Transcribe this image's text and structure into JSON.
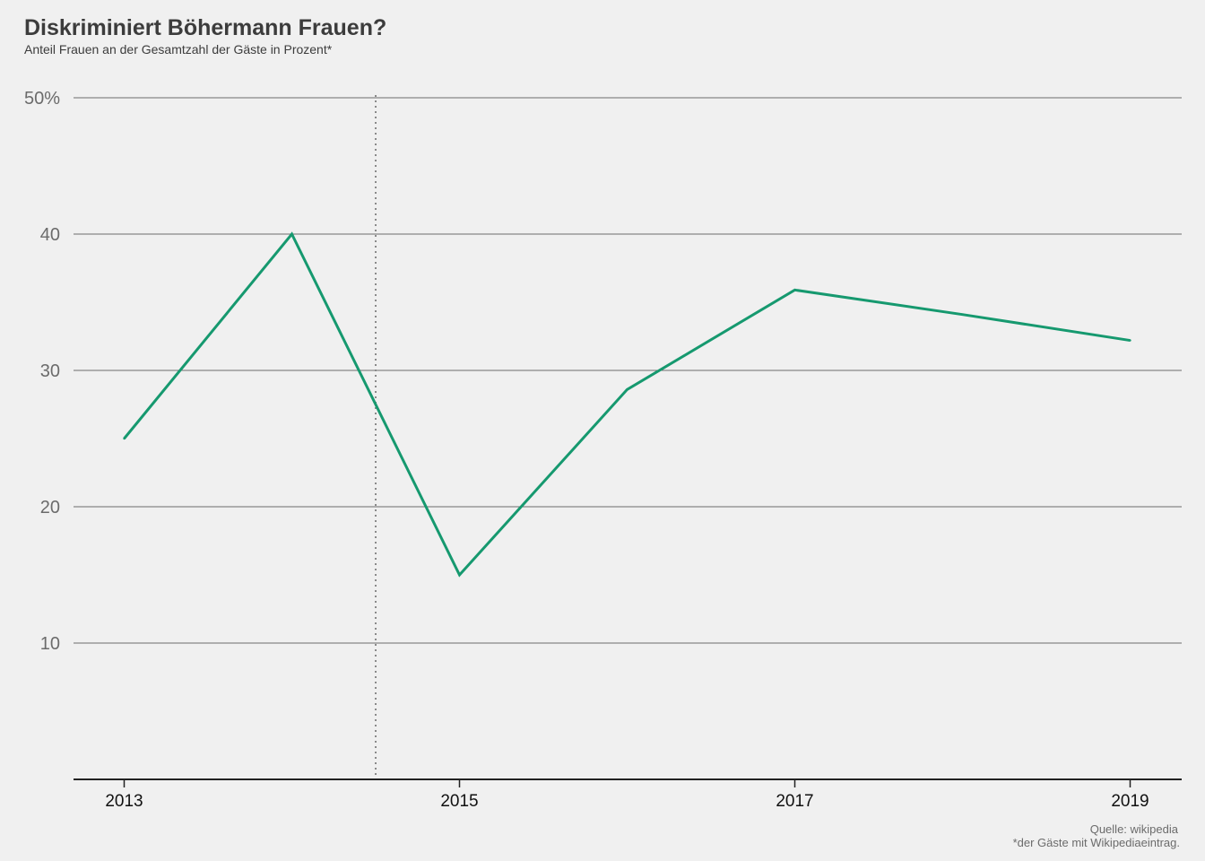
{
  "title": "Diskriminiert Böhermann Frauen?",
  "subtitle": "Anteil Frauen an der Gesamtzahl der Gäste in Prozent*",
  "source": "Quelle: wikipedia",
  "footnote": "*der Gäste mit Wikipediaeintrag.",
  "colors": {
    "line": "#16996f",
    "grid": "#6b6b6b",
    "axis": "#222222",
    "tick_label_y": "#6b6b6b",
    "tick_label_x": "#111111",
    "marker_line": "#8a8a8a",
    "background": "#f0f0f0"
  },
  "chart_data": {
    "type": "line",
    "title": "Diskriminiert Böhermann Frauen?",
    "subtitle": "Anteil Frauen an der Gesamtzahl der Gäste in Prozent*",
    "xlabel": "",
    "ylabel": "",
    "x": [
      2013,
      2014,
      2015,
      2016,
      2017,
      2018,
      2019
    ],
    "series": [
      {
        "values": [
          25.0,
          40.0,
          15.0,
          28.6,
          35.9,
          34.1,
          32.2
        ]
      }
    ],
    "xlim": [
      2012.7,
      2019.3
    ],
    "ylim": [
      0,
      50
    ],
    "x_ticks": [
      2013,
      2015,
      2017,
      2019
    ],
    "x_tick_labels": [
      "2013",
      "2015",
      "2017",
      "2019"
    ],
    "y_ticks": [
      10,
      20,
      30,
      40,
      50
    ],
    "y_tick_labels": [
      "10",
      "20",
      "30",
      "40",
      "50%"
    ],
    "grid": true,
    "reference_line_x": 2014.5,
    "reference_line_style": "dotted"
  }
}
